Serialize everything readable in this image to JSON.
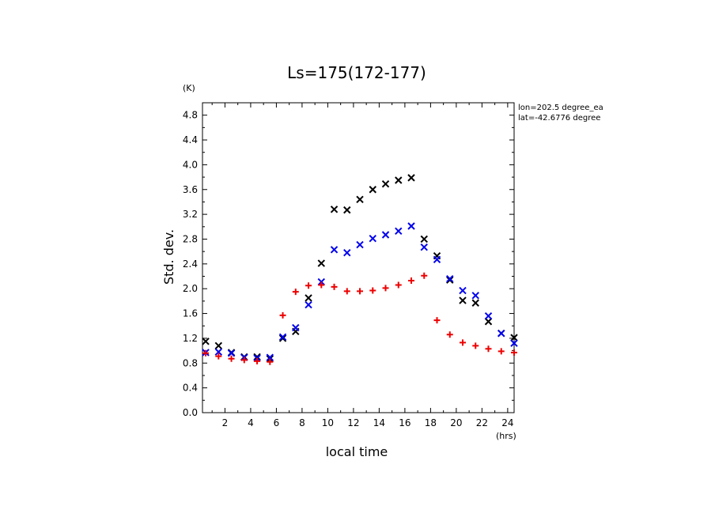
{
  "chart_data": {
    "type": "scatter",
    "title": "Ls=175(172-177)",
    "xlabel": "local time",
    "ylabel": "Std. dev.",
    "x_unit": "(hrs)",
    "y_unit": "(K)",
    "annotations": [
      "lon=202.5 degree_ea",
      "lat=-42.6776 degree"
    ],
    "xlim": [
      0.25,
      24.5
    ],
    "ylim": [
      0,
      5.0
    ],
    "x_ticks": [
      2,
      4,
      6,
      8,
      10,
      12,
      14,
      16,
      18,
      20,
      22,
      24
    ],
    "y_ticks": [
      0.0,
      0.4,
      0.8,
      1.2,
      1.6,
      2.0,
      2.4,
      2.8,
      3.2,
      3.6,
      4.0,
      4.4,
      4.8
    ],
    "grid": false,
    "x": [
      0.5,
      1.5,
      2.5,
      3.5,
      4.5,
      5.5,
      6.5,
      7.5,
      8.5,
      9.5,
      10.5,
      11.5,
      12.5,
      13.5,
      14.5,
      15.5,
      16.5,
      17.5,
      18.5,
      19.5,
      20.5,
      21.5,
      22.5,
      23.5,
      24.5
    ],
    "series": [
      {
        "color": "#000000",
        "marker": "x",
        "values": [
          1.15,
          1.08,
          0.97,
          0.9,
          0.9,
          0.87,
          1.2,
          1.31,
          1.85,
          2.41,
          3.28,
          3.27,
          3.44,
          3.6,
          3.69,
          3.75,
          3.79,
          2.8,
          2.53,
          2.14,
          1.81,
          1.77,
          1.47,
          1.28,
          1.21
        ]
      },
      {
        "color": "#0000ee",
        "marker": "x",
        "values": [
          0.97,
          0.98,
          0.96,
          0.89,
          0.88,
          0.89,
          1.22,
          1.37,
          1.74,
          2.11,
          2.63,
          2.58,
          2.71,
          2.81,
          2.87,
          2.93,
          3.01,
          2.67,
          2.47,
          2.16,
          1.97,
          1.89,
          1.56,
          1.28,
          1.12
        ]
      },
      {
        "color": "#ee0000",
        "marker": "+",
        "values": [
          0.96,
          0.91,
          0.87,
          0.85,
          0.83,
          0.82,
          1.57,
          1.95,
          2.05,
          2.06,
          2.03,
          1.96,
          1.96,
          1.97,
          2.01,
          2.06,
          2.13,
          2.21,
          1.49,
          1.26,
          1.13,
          1.08,
          1.03,
          0.99,
          0.97
        ]
      }
    ]
  }
}
